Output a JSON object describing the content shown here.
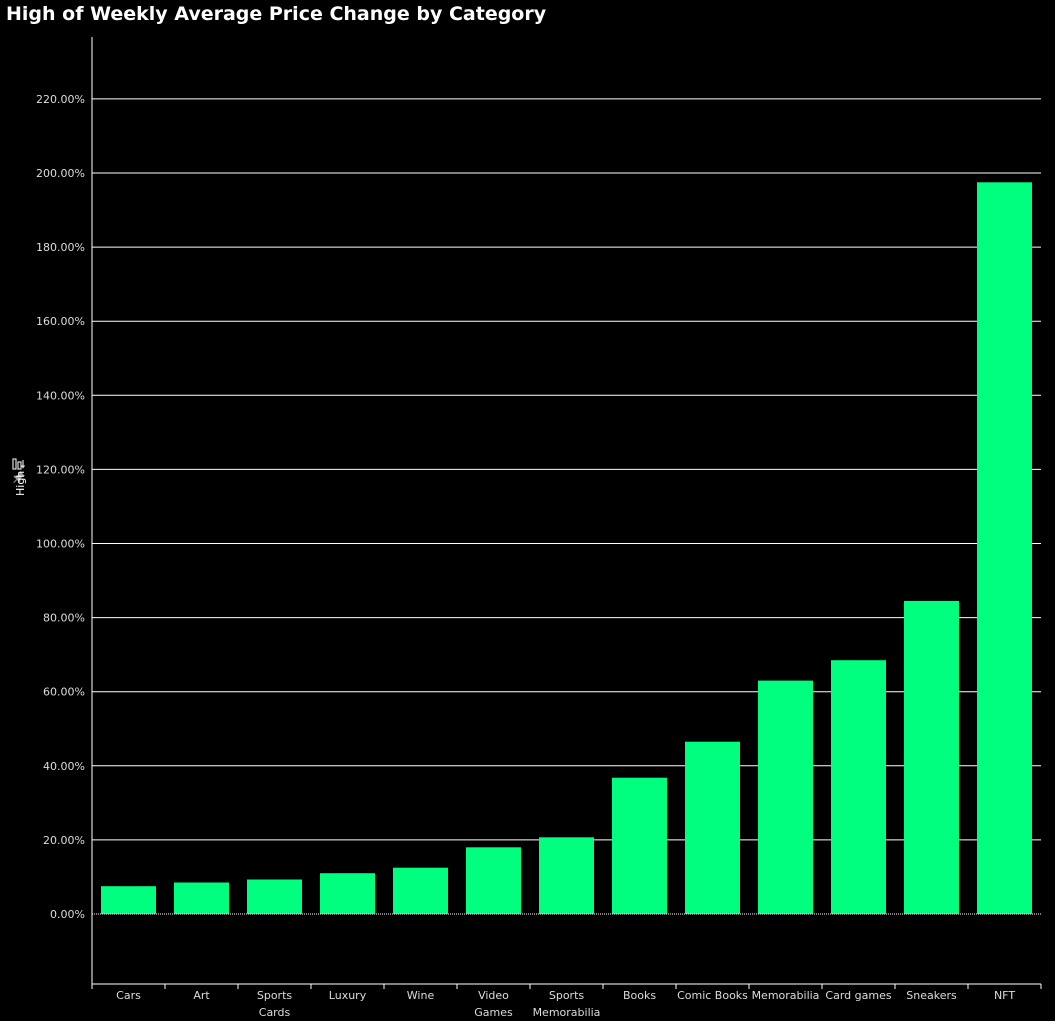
{
  "colors": {
    "background": "#000000",
    "bar": "#00ff7f",
    "grid": "#ffffff",
    "text": "#dcdcdc"
  },
  "icons": {
    "pin": "pin-icon",
    "sort": "sort-icon"
  },
  "chart_data": {
    "type": "bar",
    "title": "High of Weekly Average Price Change by Category",
    "xlabel": "",
    "ylabel": "High",
    "ylim": [
      -20,
      236
    ],
    "yticks": [
      0,
      20,
      40,
      60,
      80,
      100,
      120,
      140,
      160,
      180,
      200,
      220
    ],
    "ytick_labels": [
      "0.00%",
      "20.00%",
      "40.00%",
      "60.00%",
      "80.00%",
      "100.00%",
      "120.00%",
      "140.00%",
      "160.00%",
      "180.00%",
      "200.00%",
      "220.00%"
    ],
    "grid": true,
    "categories": [
      "Cars",
      "Art",
      "Sports Cards",
      "Luxury",
      "Wine",
      "Video Games",
      "Sports Memorabilia",
      "Books",
      "Comic Books",
      "Memorabilia",
      "Card games",
      "Sneakers",
      "NFT"
    ],
    "category_lines": [
      [
        "Cars"
      ],
      [
        "Art"
      ],
      [
        "Sports",
        "Cards"
      ],
      [
        "Luxury"
      ],
      [
        "Wine"
      ],
      [
        "Video",
        "Games"
      ],
      [
        "Sports",
        "Memorabilia"
      ],
      [
        "Books"
      ],
      [
        "Comic Books"
      ],
      [
        "Memorabilia"
      ],
      [
        "Card games"
      ],
      [
        "Sneakers"
      ],
      [
        "NFT"
      ]
    ],
    "values": [
      7.5,
      8.5,
      9.3,
      11.0,
      12.5,
      18.0,
      20.7,
      36.8,
      46.5,
      63.0,
      68.5,
      84.5,
      197.5
    ]
  }
}
